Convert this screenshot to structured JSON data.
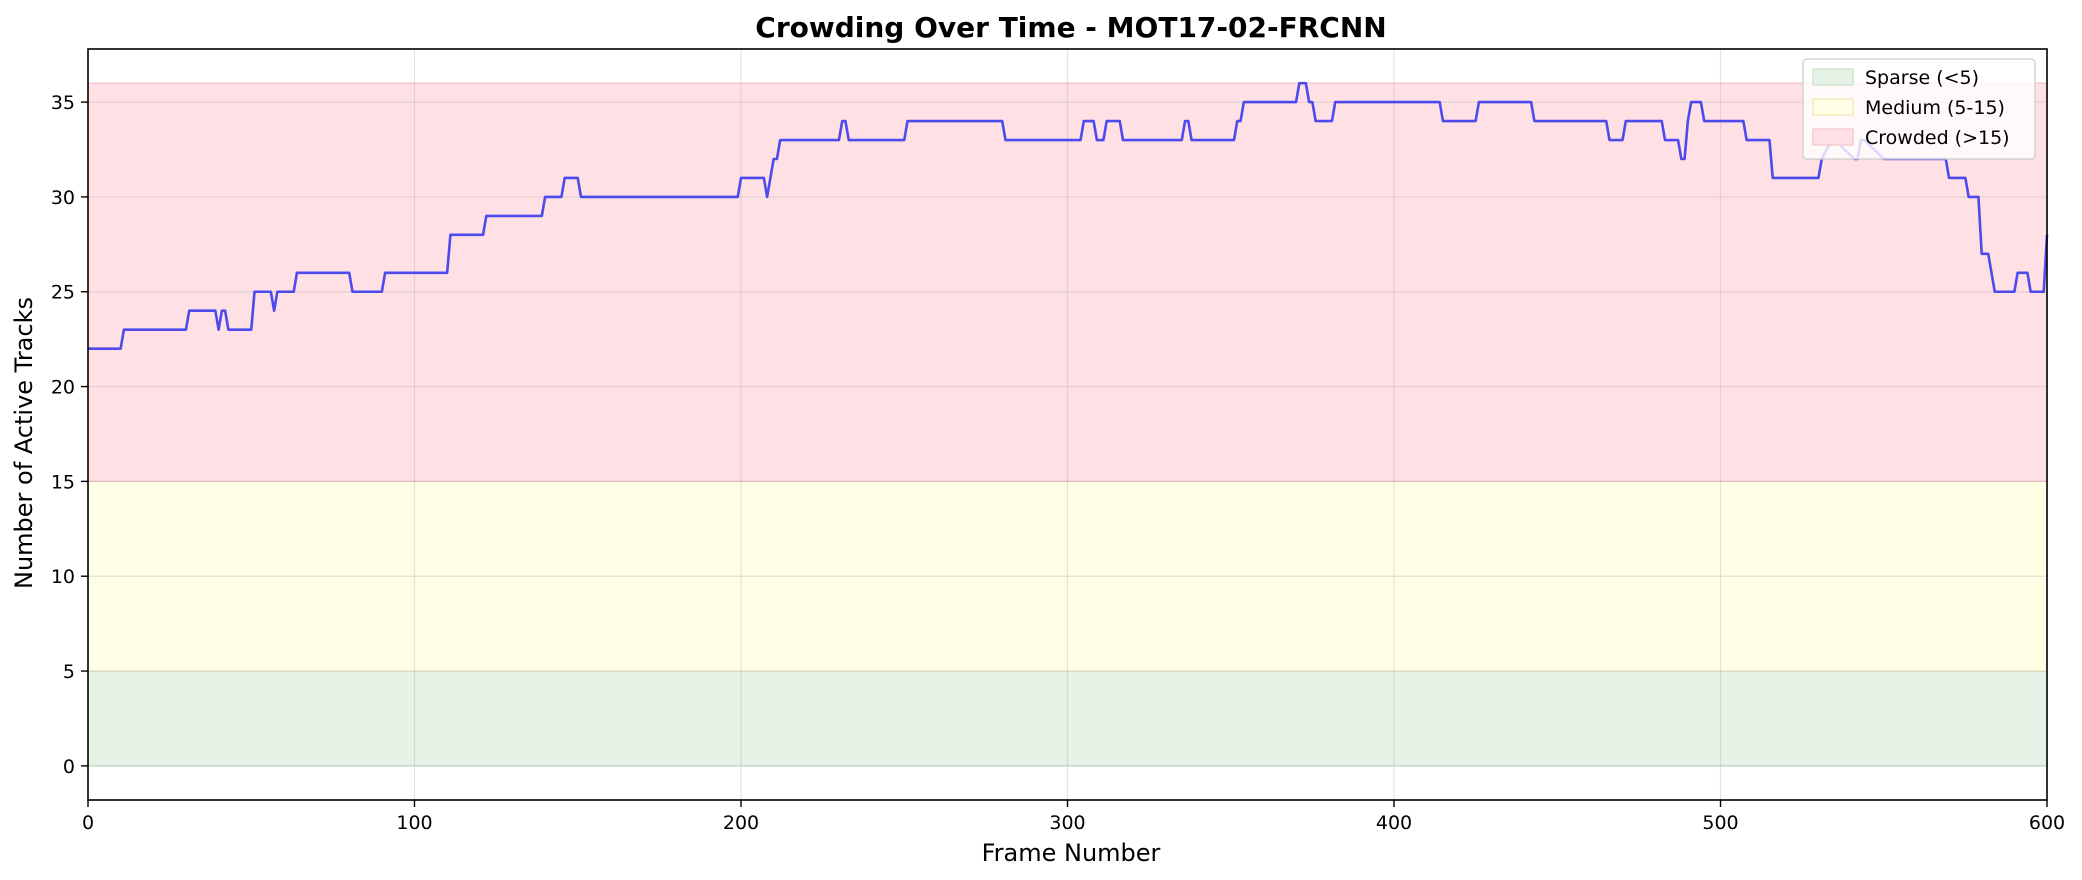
{
  "chart_data": {
    "type": "line",
    "title": "Crowding Over Time - MOT17-02-FRCNN",
    "xlabel": "Frame Number",
    "ylabel": "Number of Active Tracks",
    "xlim": [
      0,
      600
    ],
    "ylim": [
      -1.8,
      37.8
    ],
    "xticks": [
      0,
      100,
      200,
      300,
      400,
      500,
      600
    ],
    "yticks": [
      0,
      5,
      10,
      15,
      20,
      25,
      30,
      35
    ],
    "grid": true,
    "legend_position": "top-right",
    "line_color": "#3a3aee",
    "bands": [
      {
        "name": "Sparse (<5)",
        "y0": 0,
        "y1": 5,
        "color": "#e5f2e5",
        "edge": "#c7e2c7"
      },
      {
        "name": "Medium (5-15)",
        "y0": 5,
        "y1": 15,
        "color": "#ffffe5",
        "edge": "#f3e6b0"
      },
      {
        "name": "Crowded (>15)",
        "y0": 15,
        "y1": 36,
        "color": "#ffe1e5",
        "edge": "#f5c2c8"
      }
    ],
    "series": [
      {
        "x": [
          0,
          10,
          11,
          30,
          31,
          39,
          40,
          41,
          42,
          43,
          44,
          50,
          51,
          56,
          57,
          58,
          63,
          64,
          80,
          81,
          90,
          91,
          110,
          111,
          121,
          122,
          139,
          140,
          145,
          146,
          150,
          151,
          199,
          200,
          207,
          208,
          210,
          211,
          212,
          230,
          231,
          232,
          233,
          250,
          251,
          280,
          281,
          304,
          305,
          308,
          309,
          311,
          312,
          316,
          317,
          335,
          336,
          337,
          338,
          351,
          352,
          353,
          354,
          370,
          371,
          373,
          374,
          375,
          376,
          381,
          382,
          414,
          415,
          425,
          426,
          442,
          443,
          465,
          466,
          470,
          471,
          482,
          483,
          487,
          488,
          489,
          490,
          491,
          494,
          495,
          507,
          508,
          515,
          516,
          530,
          531,
          534,
          535,
          541,
          542,
          543,
          544,
          550,
          551,
          569,
          570,
          575,
          576,
          579,
          580,
          582,
          583,
          584,
          590,
          591,
          594,
          595,
          599,
          600
        ],
        "y": [
          22,
          22,
          23,
          23,
          24,
          24,
          23,
          24,
          24,
          23,
          23,
          23,
          25,
          25,
          24,
          25,
          25,
          26,
          26,
          25,
          25,
          26,
          26,
          28,
          28,
          29,
          29,
          30,
          30,
          31,
          31,
          30,
          30,
          31,
          31,
          30,
          32,
          32,
          33,
          33,
          34,
          34,
          33,
          33,
          34,
          34,
          33,
          33,
          34,
          34,
          33,
          33,
          34,
          34,
          33,
          33,
          34,
          34,
          33,
          33,
          34,
          34,
          35,
          35,
          36,
          36,
          35,
          35,
          34,
          34,
          35,
          35,
          34,
          34,
          35,
          35,
          34,
          34,
          33,
          33,
          34,
          34,
          33,
          33,
          32,
          32,
          34,
          35,
          35,
          34,
          34,
          33,
          33,
          31,
          31,
          32,
          33,
          33,
          32,
          32,
          33,
          33,
          32,
          32,
          32,
          31,
          31,
          30,
          30,
          27,
          27,
          26,
          25,
          25,
          26,
          26,
          25,
          25,
          28
        ]
      }
    ]
  }
}
